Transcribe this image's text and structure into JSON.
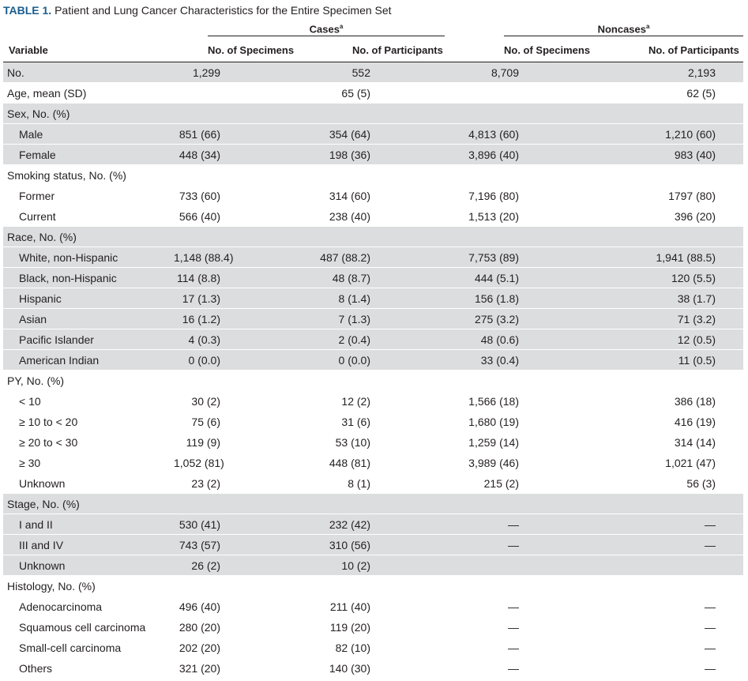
{
  "table": {
    "caption_label": "TABLE 1.",
    "caption_text": "Patient and Lung Cancer Characteristics for the Entire Specimen Set",
    "groups": {
      "cases": "Cases",
      "noncases": "Noncases",
      "footnote_marker": "a"
    },
    "columns": {
      "variable": "Variable",
      "cases_specimens": "No. of Specimens",
      "cases_participants": "No. of Participants",
      "noncases_specimens": "No. of Specimens",
      "noncases_participants": "No. of Participants"
    },
    "rows": [
      {
        "label": "No.",
        "c1": "1,299",
        "c2": "552",
        "c3": "8,709",
        "c4": "2,193"
      },
      {
        "label": "Age, mean (SD)",
        "c1": "",
        "c2": "65 (5)",
        "c3": "",
        "c4": "62 (5)"
      },
      {
        "label": "Sex, No. (%)",
        "c1": "",
        "c2": "",
        "c3": "",
        "c4": ""
      },
      {
        "label": "Male",
        "c1": "851 (66)",
        "c2": "354 (64)",
        "c3": "4,813 (60)",
        "c4": "1,210 (60)"
      },
      {
        "label": "Female",
        "c1": "448 (34)",
        "c2": "198 (36)",
        "c3": "3,896 (40)",
        "c4": "983 (40)"
      },
      {
        "label": "Smoking status, No. (%)",
        "c1": "",
        "c2": "",
        "c3": "",
        "c4": ""
      },
      {
        "label": "Former",
        "c1": "733 (60)",
        "c2": "314 (60)",
        "c3": "7,196 (80)",
        "c4": "1797 (80)"
      },
      {
        "label": "Current",
        "c1": "566 (40)",
        "c2": "238 (40)",
        "c3": "1,513 (20)",
        "c4": "396 (20)"
      },
      {
        "label": "Race, No. (%)",
        "c1": "",
        "c2": "",
        "c3": "",
        "c4": ""
      },
      {
        "label": "White, non-Hispanic",
        "c1": "1,148 (88.4)",
        "c2": "487 (88.2)",
        "c3": "7,753 (89)",
        "c4": "1,941 (88.5)"
      },
      {
        "label": "Black, non-Hispanic",
        "c1": "114 (8.8)",
        "c2": "48 (8.7)",
        "c3": "444 (5.1)",
        "c4": "120 (5.5)"
      },
      {
        "label": "Hispanic",
        "c1": "17 (1.3)",
        "c2": "8 (1.4)",
        "c3": "156 (1.8)",
        "c4": "38 (1.7)"
      },
      {
        "label": "Asian",
        "c1": "16 (1.2)",
        "c2": "7 (1.3)",
        "c3": "275 (3.2)",
        "c4": "71 (3.2)"
      },
      {
        "label": "Pacific Islander",
        "c1": "4 (0.3)",
        "c2": "2 (0.4)",
        "c3": "48 (0.6)",
        "c4": "12 (0.5)"
      },
      {
        "label": "American Indian",
        "c1": "0 (0.0)",
        "c2": "0 (0.0)",
        "c3": "33 (0.4)",
        "c4": "11 (0.5)"
      },
      {
        "label": "PY, No. (%)",
        "c1": "",
        "c2": "",
        "c3": "",
        "c4": ""
      },
      {
        "label": "< 10",
        "c1": "30 (2)",
        "c2": "12 (2)",
        "c3": "1,566 (18)",
        "c4": "386 (18)"
      },
      {
        "label": "≥ 10 to < 20",
        "c1": "75 (6)",
        "c2": "31 (6)",
        "c3": "1,680 (19)",
        "c4": "416 (19)"
      },
      {
        "label": "≥ 20 to < 30",
        "c1": "119 (9)",
        "c2": "53 (10)",
        "c3": "1,259 (14)",
        "c4": "314 (14)"
      },
      {
        "label": "≥ 30",
        "c1": "1,052 (81)",
        "c2": "448 (81)",
        "c3": "3,989 (46)",
        "c4": "1,021 (47)"
      },
      {
        "label": "Unknown",
        "c1": "23 (2)",
        "c2": "8 (1)",
        "c3": "215 (2)",
        "c4": "56 (3)"
      },
      {
        "label": "Stage, No. (%)",
        "c1": "",
        "c2": "",
        "c3": "",
        "c4": ""
      },
      {
        "label": "I and II",
        "c1": "530 (41)",
        "c2": "232 (42)",
        "c3": "—",
        "c4": "—"
      },
      {
        "label": "III and IV",
        "c1": "743 (57)",
        "c2": "310 (56)",
        "c3": "—",
        "c4": "—"
      },
      {
        "label": "Unknown",
        "c1": "26 (2)",
        "c2": "10 (2)",
        "c3": "",
        "c4": ""
      },
      {
        "label": "Histology, No. (%)",
        "c1": "",
        "c2": "",
        "c3": "",
        "c4": ""
      },
      {
        "label": "Adenocarcinoma",
        "c1": "496 (40)",
        "c2": "211 (40)",
        "c3": "—",
        "c4": "—"
      },
      {
        "label": "Squamous cell carcinoma",
        "c1": "280 (20)",
        "c2": "119 (20)",
        "c3": "—",
        "c4": "—"
      },
      {
        "label": "Small-cell carcinoma",
        "c1": "202 (20)",
        "c2": "82 (10)",
        "c3": "—",
        "c4": "—"
      },
      {
        "label": "Others",
        "c1": "321 (20)",
        "c2": "140 (30)",
        "c3": "—",
        "c4": "—"
      }
    ]
  }
}
